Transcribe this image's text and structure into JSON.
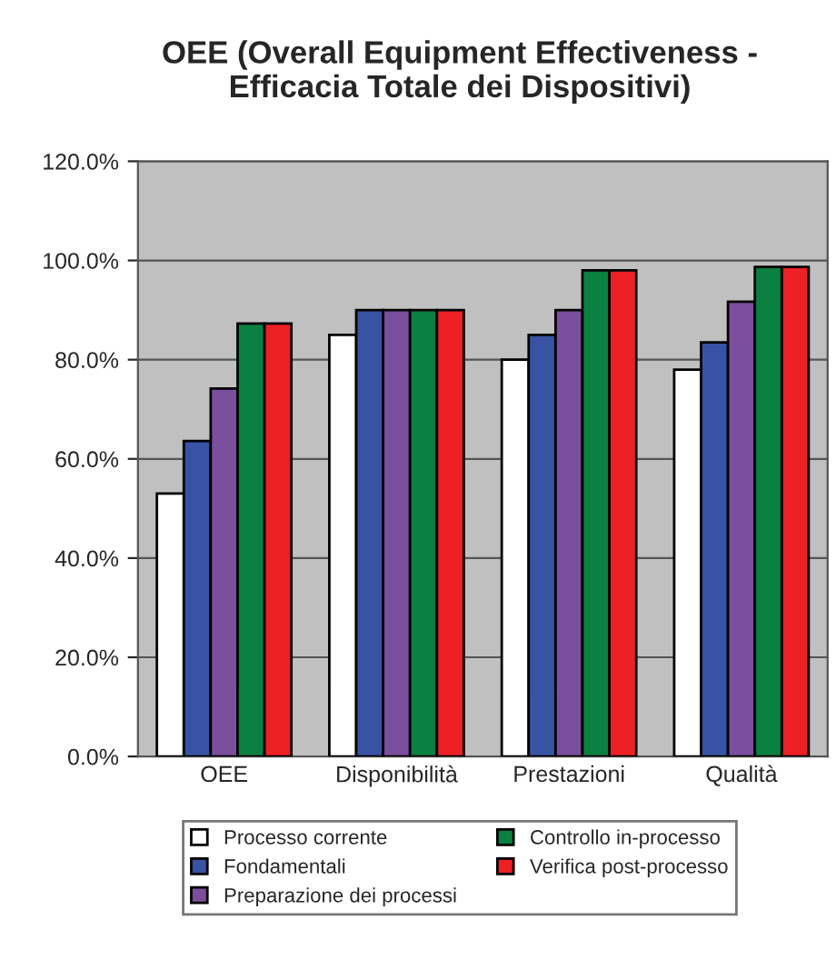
{
  "chart_data": {
    "type": "bar",
    "title": "OEE (Overall Equipment Effectiveness -\nEfficacia Totale dei Dispositivi)",
    "categories": [
      "OEE",
      "Disponibilità",
      "Prestazioni",
      "Qualità"
    ],
    "series": [
      {
        "name": "Processo corrente",
        "color": "#ffffff",
        "values": [
          53,
          85,
          80,
          78
        ]
      },
      {
        "name": "Fondamentali",
        "color": "#3953a4",
        "values": [
          63.6,
          90,
          85,
          83.5
        ]
      },
      {
        "name": "Preparazione dei processi",
        "color": "#7b4f9d",
        "values": [
          74.2,
          90,
          90,
          91.7
        ]
      },
      {
        "name": "Controllo in-processo",
        "color": "#0b8040",
        "values": [
          87.3,
          90,
          98,
          98.7
        ]
      },
      {
        "name": "Verifica post-processo",
        "color": "#ed2024",
        "values": [
          87.3,
          90,
          98,
          98.7
        ]
      }
    ],
    "ylim": [
      0,
      120
    ],
    "yticks": [
      {
        "value": 0,
        "label": "0.0%"
      },
      {
        "value": 20,
        "label": "20.0%"
      },
      {
        "value": 40,
        "label": "40.0%"
      },
      {
        "value": 60,
        "label": "60.0%"
      },
      {
        "value": 80,
        "label": "80.0%"
      },
      {
        "value": 100,
        "label": "100.0%"
      },
      {
        "value": 120,
        "label": "120.0%"
      }
    ],
    "grid": "y",
    "legend": "bottom"
  }
}
